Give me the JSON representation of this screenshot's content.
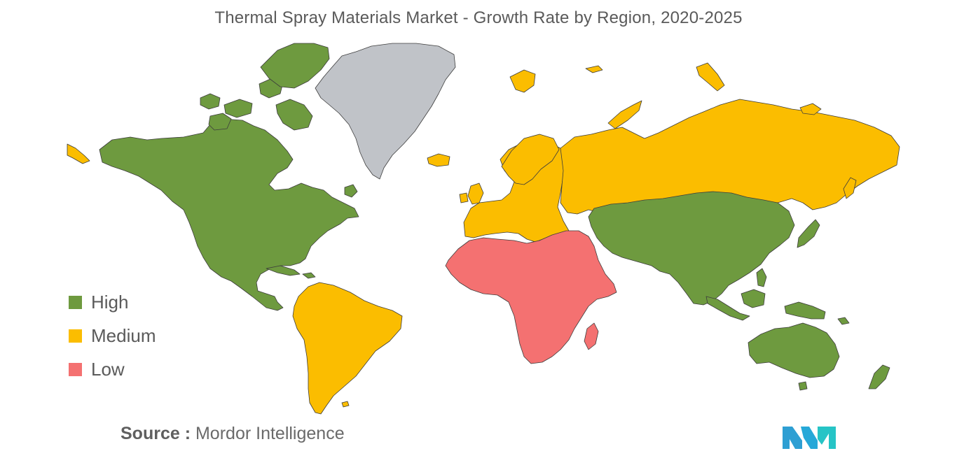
{
  "title": "Thermal Spray Materials Market - Growth Rate by Region, 2020-2025",
  "legend": {
    "items": [
      {
        "label": "High",
        "color": "#6e9a3f"
      },
      {
        "label": "Medium",
        "color": "#fbbd00"
      },
      {
        "label": "Low",
        "color": "#f47171"
      }
    ]
  },
  "regions": [
    {
      "region": "North America",
      "category": "High"
    },
    {
      "region": "Asia-Pacific",
      "category": "High"
    },
    {
      "region": "South America",
      "category": "Medium"
    },
    {
      "region": "Europe",
      "category": "Medium"
    },
    {
      "region": "Russia",
      "category": "Medium"
    },
    {
      "region": "Middle East and Africa",
      "category": "Low"
    },
    {
      "region": "Greenland",
      "category": "No data"
    }
  ],
  "colors": {
    "high": "#6e9a3f",
    "medium": "#fbbd00",
    "low": "#f47171",
    "nodata": "#c0c3c8",
    "border": "#3c3c3c"
  },
  "source": {
    "key": "Source :",
    "value": "Mordor Intelligence"
  },
  "logo": {
    "icon": "mordor-intelligence-logo",
    "color_left": "#2e9fd3",
    "color_right": "#26c4c6"
  }
}
